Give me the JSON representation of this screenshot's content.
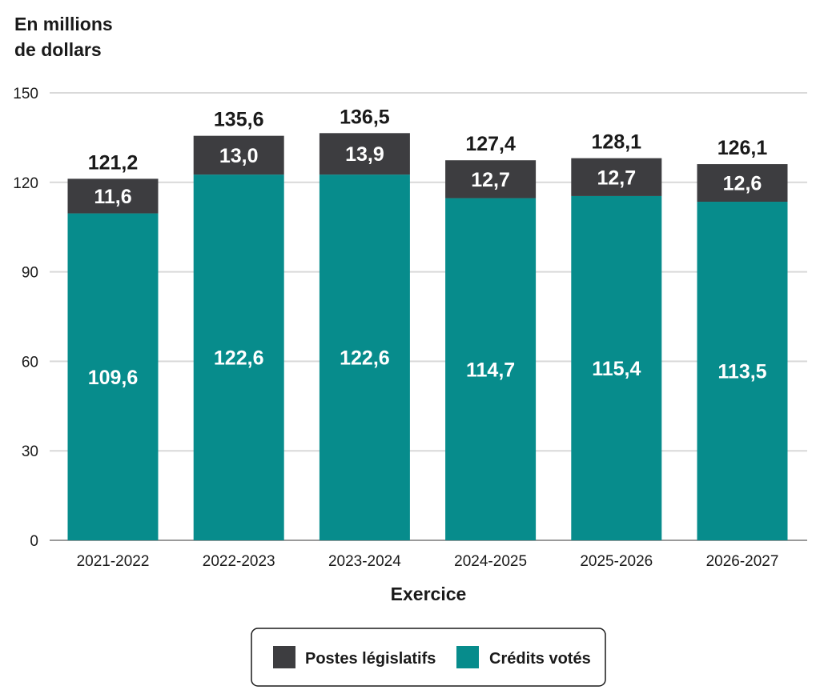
{
  "chart_data": {
    "type": "bar",
    "stacked": true,
    "ylabel_line1": "En millions",
    "ylabel_line2": "de dollars",
    "xlabel": "Exercice",
    "ylim": [
      0,
      150
    ],
    "yticks": [
      "0",
      "30",
      "60",
      "90",
      "120",
      "150"
    ],
    "grid": true,
    "legend_position": "bottom",
    "categories": [
      "2021-2022",
      "2022-2023",
      "2023-2024",
      "2024-2025",
      "2025-2026",
      "2026-2027"
    ],
    "totals": [
      "121,2",
      "135,6",
      "136,5",
      "127,4",
      "128,1",
      "126,1"
    ],
    "series": [
      {
        "name": "Crédits votés",
        "color": "#078c8c",
        "values": [
          109.6,
          122.6,
          122.6,
          114.7,
          115.4,
          113.5
        ],
        "labels": [
          "109,6",
          "122,6",
          "122,6",
          "114,7",
          "115,4",
          "113,5"
        ]
      },
      {
        "name": "Postes législatifs",
        "color": "#3d3d40",
        "values": [
          11.6,
          13.0,
          13.9,
          12.7,
          12.7,
          12.6
        ],
        "labels": [
          "11,6",
          "13,0",
          "13,9",
          "12,7",
          "12,7",
          "12,6"
        ]
      }
    ],
    "legend_order": [
      "Postes législatifs",
      "Crédits votés"
    ]
  }
}
